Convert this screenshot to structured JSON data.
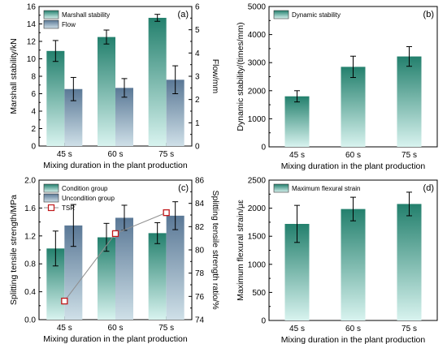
{
  "colors": {
    "teal_top": "#23806d",
    "teal_bottom": "#d8f3ef",
    "slate_top": "#5a7896",
    "slate_bottom": "#cfe0e8",
    "tsr": "#c0181a",
    "tsr_line": "#8f8f8f"
  },
  "chart_data": [
    {
      "panel": "(a)",
      "type": "bar",
      "categories": [
        "45 s",
        "60 s",
        "75 s"
      ],
      "xlabel": "Mixing duration in the plant production",
      "series": [
        {
          "name": "Marshall stability",
          "axis": "left",
          "values": [
            10.9,
            12.5,
            14.7
          ],
          "errors": [
            1.2,
            0.8,
            0.4
          ]
        },
        {
          "name": "Flow",
          "axis": "right",
          "values": [
            2.45,
            2.5,
            2.85
          ],
          "errors": [
            0.5,
            0.4,
            0.6
          ]
        }
      ],
      "y_left": {
        "label": "Marshall stability/kN",
        "ylim": [
          0,
          16
        ],
        "ticks": [
          0,
          2,
          4,
          6,
          8,
          10,
          12,
          14,
          16
        ]
      },
      "y_right": {
        "label": "Flow/mm",
        "ylim": [
          0,
          6
        ],
        "ticks": [
          0,
          1,
          2,
          3,
          4,
          5,
          6
        ]
      },
      "legend": "top-left"
    },
    {
      "panel": "(b)",
      "type": "bar",
      "categories": [
        "45 s",
        "60 s",
        "75 s"
      ],
      "xlabel": "Mixing duration in the plant production",
      "series": [
        {
          "name": "Dynamic stability",
          "axis": "left",
          "values": [
            1800,
            2850,
            3220
          ],
          "errors": [
            200,
            380,
            350
          ]
        }
      ],
      "y_left": {
        "label": "Dynamic stability/(times/mm)",
        "ylim": [
          0,
          5000
        ],
        "ticks": [
          0,
          1000,
          2000,
          3000,
          4000,
          5000
        ]
      },
      "legend": "top-left"
    },
    {
      "panel": "(c)",
      "type": "bar",
      "categories": [
        "45 s",
        "60 s",
        "75 s"
      ],
      "xlabel": "Mixing duration in the plant production",
      "series": [
        {
          "name": "Condition group",
          "axis": "left",
          "values": [
            1.02,
            1.18,
            1.24
          ],
          "errors": [
            0.25,
            0.2,
            0.15
          ]
        },
        {
          "name": "Uncondition group",
          "axis": "left",
          "values": [
            1.35,
            1.46,
            1.49
          ],
          "errors": [
            0.3,
            0.18,
            0.2
          ]
        },
        {
          "name": "TSR",
          "axis": "right",
          "type": "line",
          "values": [
            75.6,
            81.4,
            83.2
          ]
        }
      ],
      "y_left": {
        "label": "Splitting tensile strength/MPa",
        "ylim": [
          0,
          2.0
        ],
        "ticks": [
          0.0,
          0.4,
          0.8,
          1.2,
          1.6,
          2.0
        ]
      },
      "y_right": {
        "label": "Splitting tensile strength ratio/%",
        "ylim": [
          74,
          86
        ],
        "ticks": [
          74,
          76,
          78,
          80,
          82,
          84,
          86
        ]
      },
      "legend": "top-left"
    },
    {
      "panel": "(d)",
      "type": "bar",
      "categories": [
        "45 s",
        "60 s",
        "75 s"
      ],
      "xlabel": "Mixing duration in the plant production",
      "series": [
        {
          "name": "Maximum flexural strain",
          "axis": "left",
          "values": [
            1720,
            1985,
            2075
          ],
          "errors": [
            330,
            210,
            210
          ]
        }
      ],
      "y_left": {
        "label": "Maximum flexural strain/με",
        "ylim": [
          0,
          2500
        ],
        "ticks": [
          0,
          500,
          1000,
          1500,
          2000,
          2500
        ]
      },
      "legend": "top-left"
    }
  ]
}
